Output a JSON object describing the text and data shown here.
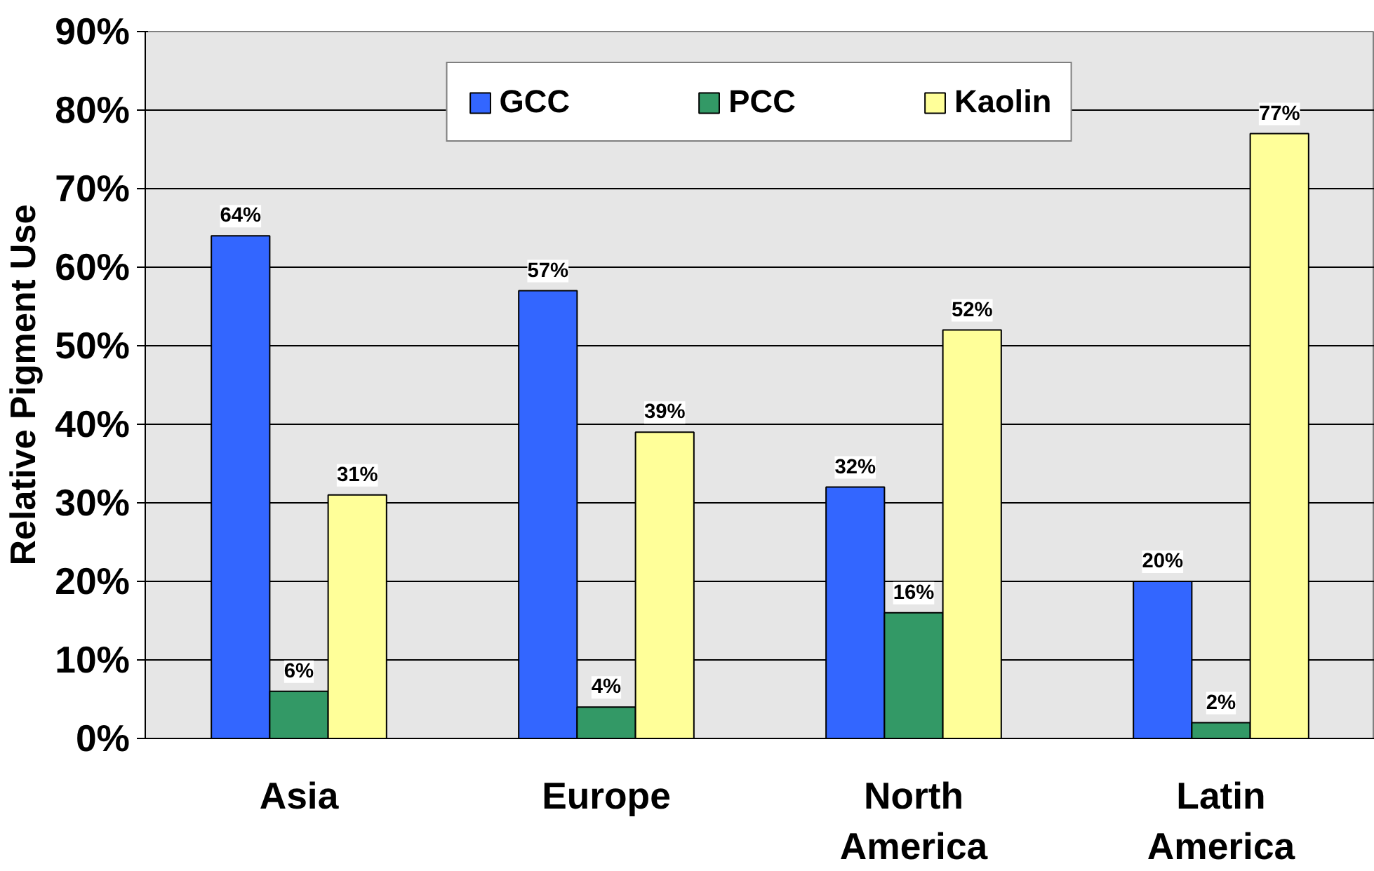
{
  "chart_data": {
    "type": "bar",
    "ylabel": "Relative Pigment Use",
    "categories": [
      "Asia",
      "Europe",
      "North\nAmerica",
      "Latin\nAmerica"
    ],
    "series": [
      {
        "name": "GCC",
        "color": "#3366ff",
        "values": [
          64,
          57,
          32,
          20
        ],
        "value_labels": [
          "64%",
          "57%",
          "32%",
          "20%"
        ]
      },
      {
        "name": "PCC",
        "color": "#339966",
        "values": [
          6,
          4,
          16,
          2
        ],
        "value_labels": [
          "6%",
          "4%",
          "16%",
          "2%"
        ]
      },
      {
        "name": "Kaolin",
        "color": "#ffff99",
        "values": [
          31,
          39,
          52,
          77
        ],
        "value_labels": [
          "31%",
          "39%",
          "52%",
          "77%"
        ]
      }
    ],
    "ylim": [
      0,
      90
    ],
    "yticks": [
      {
        "value": 0,
        "label": "0%"
      },
      {
        "value": 10,
        "label": "10%"
      },
      {
        "value": 20,
        "label": "20%"
      },
      {
        "value": 30,
        "label": "30%"
      },
      {
        "value": 40,
        "label": "40%"
      },
      {
        "value": 50,
        "label": "50%"
      },
      {
        "value": 60,
        "label": "60%"
      },
      {
        "value": 70,
        "label": "70%"
      },
      {
        "value": 80,
        "label": "80%"
      },
      {
        "value": 90,
        "label": "90%"
      }
    ],
    "grid": "y",
    "legend": "top"
  }
}
